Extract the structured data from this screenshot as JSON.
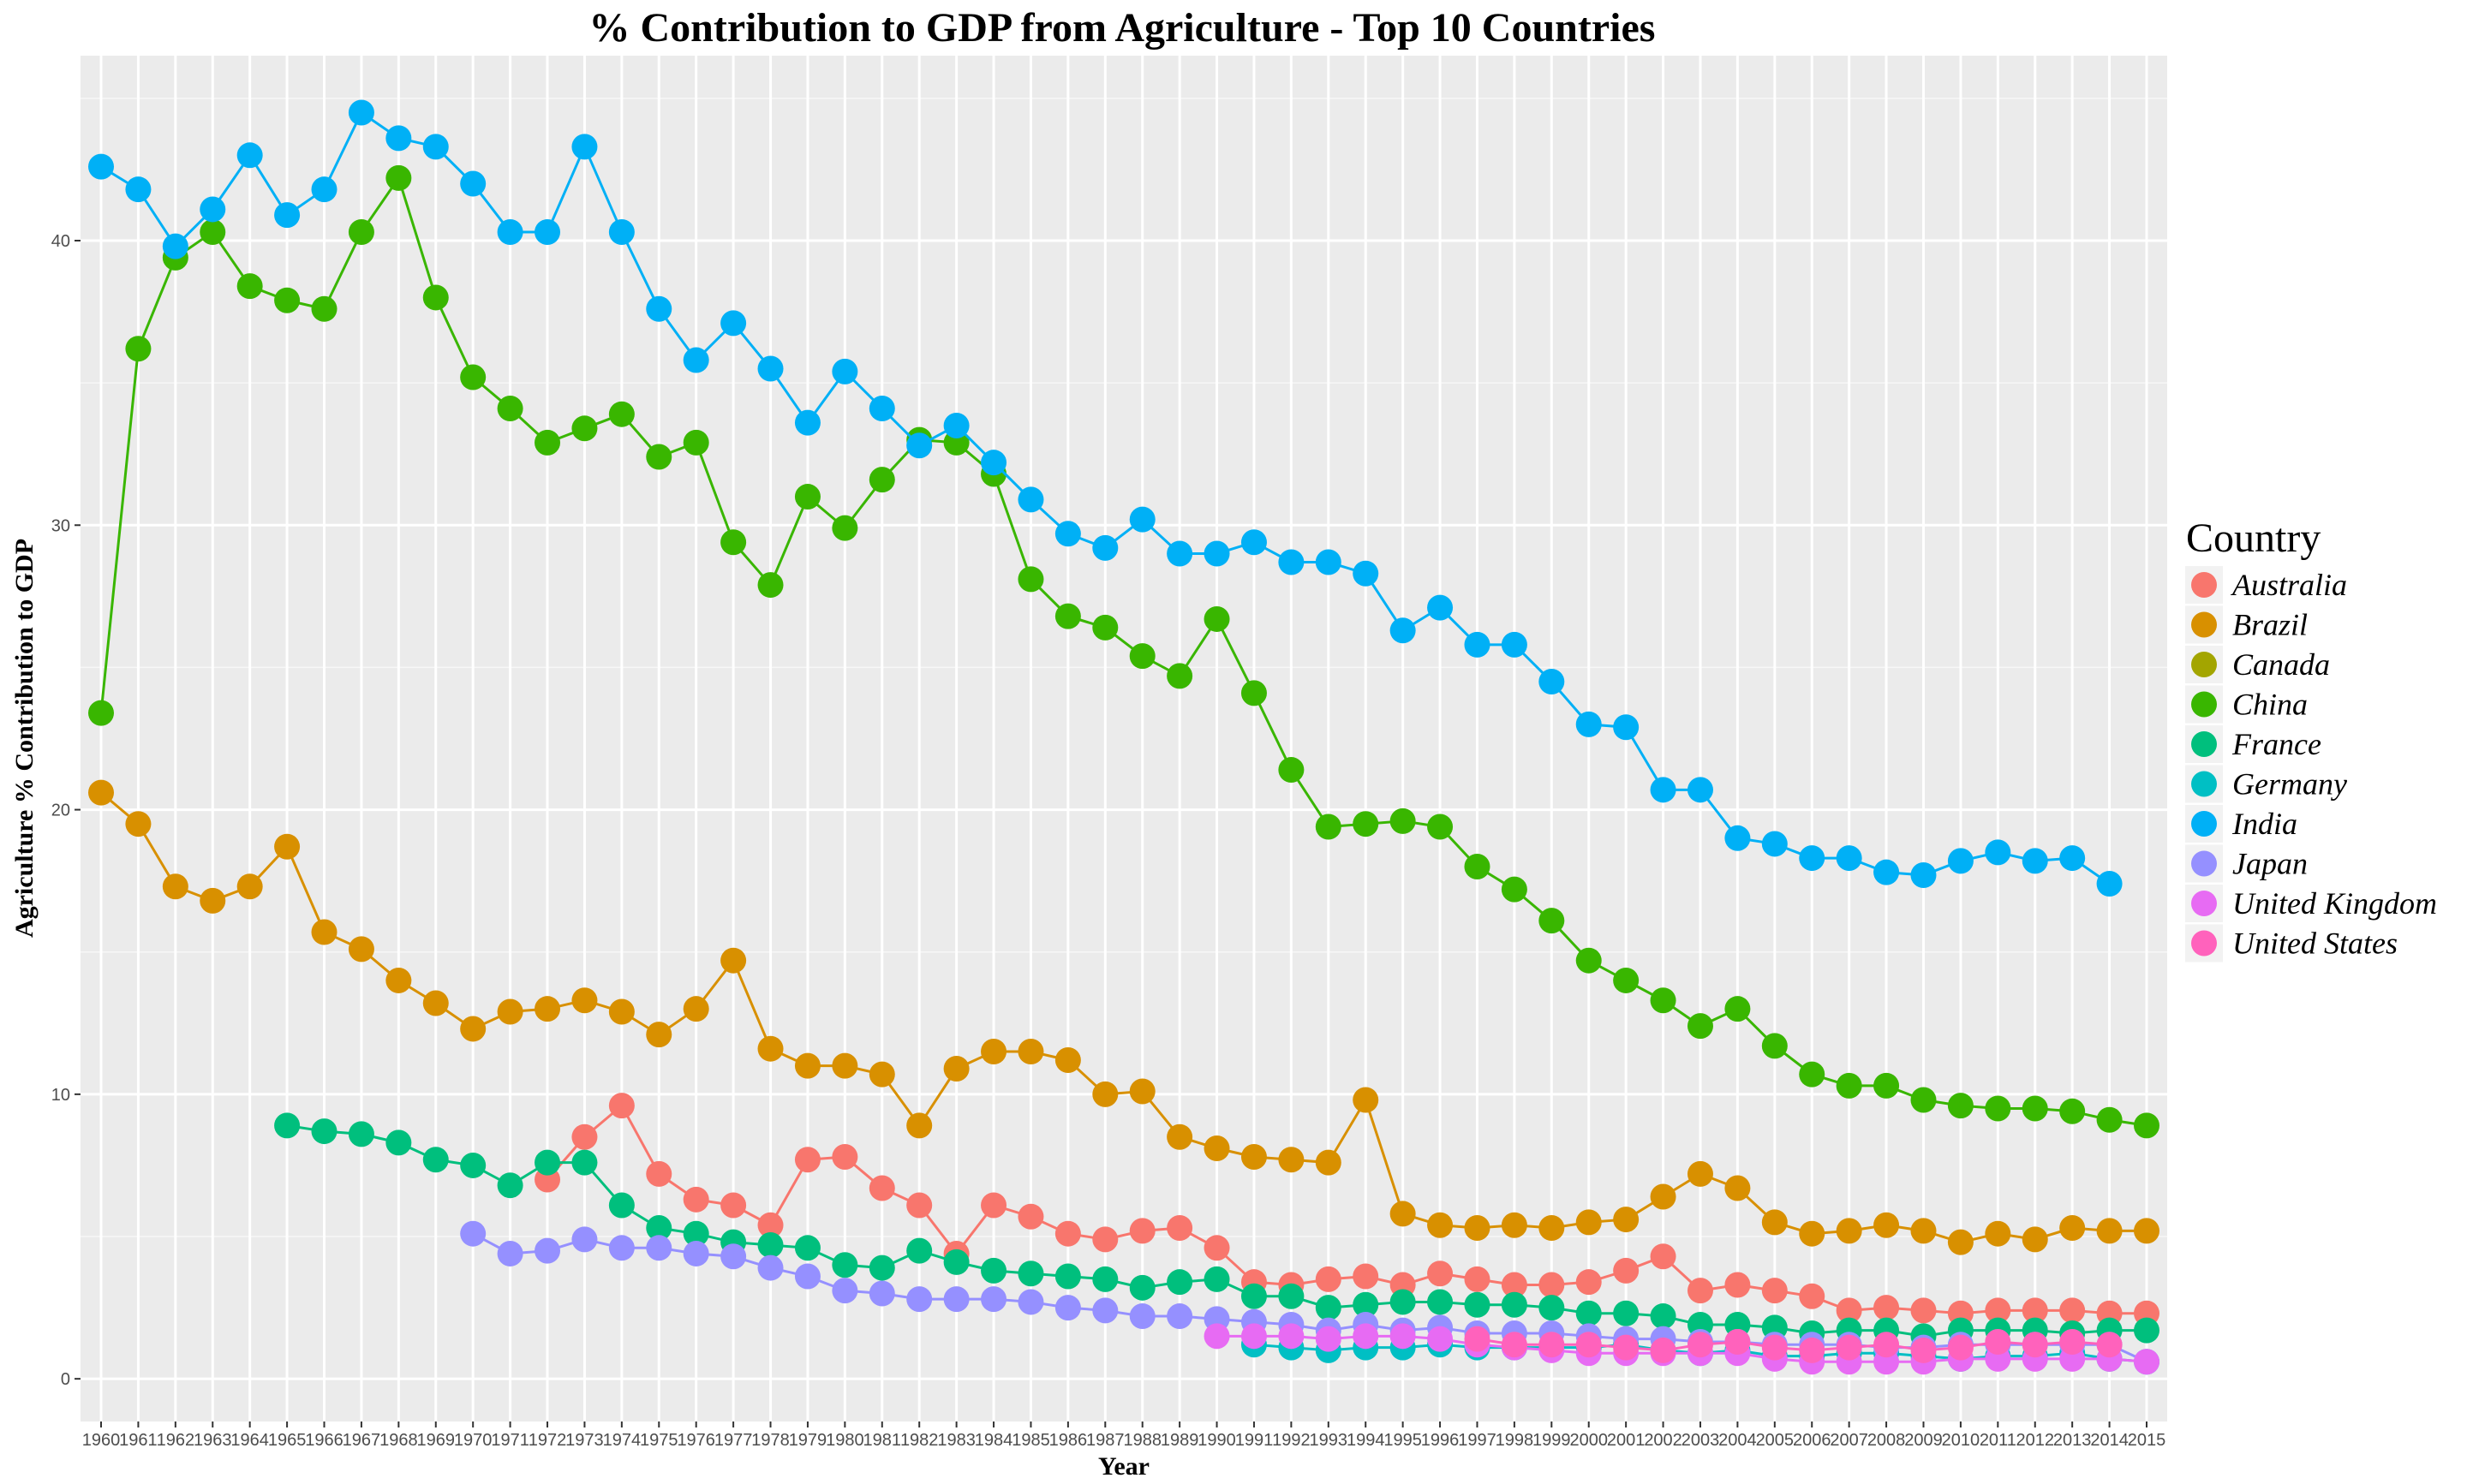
{
  "chart_data": {
    "type": "line",
    "title": "% Contribution to GDP from Agriculture - Top 10 Countries",
    "xlabel": "Year",
    "ylabel": "Agriculture % Contribution to GDP",
    "xlim": [
      1960,
      2015
    ],
    "ylim": [
      -1.5,
      46.5
    ],
    "y_ticks": [
      0,
      10,
      20,
      30,
      40
    ],
    "x_ticks": [
      1960,
      1961,
      1962,
      1963,
      1964,
      1965,
      1966,
      1967,
      1968,
      1969,
      1970,
      1971,
      1972,
      1973,
      1974,
      1975,
      1976,
      1977,
      1978,
      1979,
      1980,
      1981,
      1982,
      1983,
      1984,
      1985,
      1986,
      1987,
      1988,
      1989,
      1990,
      1991,
      1992,
      1993,
      1994,
      1995,
      1996,
      1997,
      1998,
      1999,
      2000,
      2001,
      2002,
      2003,
      2004,
      2005,
      2006,
      2007,
      2008,
      2009,
      2010,
      2011,
      2012,
      2013,
      2014,
      2015
    ],
    "grid": true,
    "legend": {
      "title": "Country",
      "placement": "right"
    },
    "series": [
      {
        "name": "Australia",
        "color": "#F8766D",
        "x": [
          1972,
          1973,
          1974,
          1975,
          1976,
          1977,
          1978,
          1979,
          1980,
          1981,
          1982,
          1983,
          1984,
          1985,
          1986,
          1987,
          1988,
          1989,
          1990,
          1991,
          1992,
          1993,
          1994,
          1995,
          1996,
          1997,
          1998,
          1999,
          2000,
          2001,
          2002,
          2003,
          2004,
          2005,
          2006,
          2007,
          2008,
          2009,
          2010,
          2011,
          2012,
          2013,
          2014,
          2015
        ],
        "y": [
          7.0,
          8.5,
          9.6,
          7.2,
          6.3,
          6.1,
          5.4,
          7.7,
          7.8,
          6.7,
          6.1,
          4.4,
          6.1,
          5.7,
          5.1,
          4.9,
          5.2,
          5.3,
          4.6,
          3.4,
          3.3,
          3.5,
          3.6,
          3.3,
          3.7,
          3.5,
          3.3,
          3.3,
          3.4,
          3.8,
          4.3,
          3.1,
          3.3,
          3.1,
          2.9,
          2.4,
          2.5,
          2.4,
          2.3,
          2.4,
          2.4,
          2.4,
          2.3,
          2.3
        ]
      },
      {
        "name": "Brazil",
        "color": "#D89000",
        "x": [
          1960,
          1961,
          1962,
          1963,
          1964,
          1965,
          1966,
          1967,
          1968,
          1969,
          1970,
          1971,
          1972,
          1973,
          1974,
          1975,
          1976,
          1977,
          1978,
          1979,
          1980,
          1981,
          1982,
          1983,
          1984,
          1985,
          1986,
          1987,
          1988,
          1989,
          1990,
          1991,
          1992,
          1993,
          1994,
          1995,
          1996,
          1997,
          1998,
          1999,
          2000,
          2001,
          2002,
          2003,
          2004,
          2005,
          2006,
          2007,
          2008,
          2009,
          2010,
          2011,
          2012,
          2013,
          2014,
          2015
        ],
        "y": [
          20.6,
          19.5,
          17.3,
          16.8,
          17.3,
          18.7,
          15.7,
          15.1,
          14.0,
          13.2,
          12.3,
          12.9,
          13.0,
          13.3,
          12.9,
          12.1,
          13.0,
          14.7,
          11.6,
          11.0,
          11.0,
          10.7,
          8.9,
          10.9,
          11.5,
          11.5,
          11.2,
          10.0,
          10.1,
          8.5,
          8.1,
          7.8,
          7.7,
          7.6,
          9.8,
          5.8,
          5.4,
          5.3,
          5.4,
          5.3,
          5.5,
          5.6,
          6.4,
          7.2,
          6.7,
          5.5,
          5.1,
          5.2,
          5.4,
          5.2,
          4.8,
          5.1,
          4.9,
          5.3,
          5.2,
          5.2
        ]
      },
      {
        "name": "Canada",
        "color": "#A3A500",
        "x": [],
        "y": []
      },
      {
        "name": "China",
        "color": "#39B600",
        "x": [
          1960,
          1961,
          1962,
          1963,
          1964,
          1965,
          1966,
          1967,
          1968,
          1969,
          1970,
          1971,
          1972,
          1973,
          1974,
          1975,
          1976,
          1977,
          1978,
          1979,
          1980,
          1981,
          1982,
          1983,
          1984,
          1985,
          1986,
          1987,
          1988,
          1989,
          1990,
          1991,
          1992,
          1993,
          1994,
          1995,
          1996,
          1997,
          1998,
          1999,
          2000,
          2001,
          2002,
          2003,
          2004,
          2005,
          2006,
          2007,
          2008,
          2009,
          2010,
          2011,
          2012,
          2013,
          2014,
          2015
        ],
        "y": [
          23.4,
          36.2,
          39.4,
          40.3,
          38.4,
          37.9,
          37.6,
          40.3,
          42.2,
          38.0,
          35.2,
          34.1,
          32.9,
          33.4,
          33.9,
          32.4,
          32.9,
          29.4,
          27.9,
          31.0,
          29.9,
          31.6,
          33.0,
          32.9,
          31.8,
          28.1,
          26.8,
          26.4,
          25.4,
          24.7,
          26.7,
          24.1,
          21.4,
          19.4,
          19.5,
          19.6,
          19.4,
          18.0,
          17.2,
          16.1,
          14.7,
          14.0,
          13.3,
          12.4,
          13.0,
          11.7,
          10.7,
          10.3,
          10.3,
          9.8,
          9.6,
          9.5,
          9.5,
          9.4,
          9.1,
          8.9
        ]
      },
      {
        "name": "France",
        "color": "#00BF7D",
        "x": [
          1965,
          1966,
          1967,
          1968,
          1969,
          1970,
          1971,
          1972,
          1973,
          1974,
          1975,
          1976,
          1977,
          1978,
          1979,
          1980,
          1981,
          1982,
          1983,
          1984,
          1985,
          1986,
          1987,
          1988,
          1989,
          1990,
          1991,
          1992,
          1993,
          1994,
          1995,
          1996,
          1997,
          1998,
          1999,
          2000,
          2001,
          2002,
          2003,
          2004,
          2005,
          2006,
          2007,
          2008,
          2009,
          2010,
          2011,
          2012,
          2013,
          2014,
          2015
        ],
        "y": [
          8.9,
          8.7,
          8.6,
          8.3,
          7.7,
          7.5,
          6.8,
          7.6,
          7.6,
          6.1,
          5.3,
          5.1,
          4.8,
          4.7,
          4.6,
          4.0,
          3.9,
          4.5,
          4.1,
          3.8,
          3.7,
          3.6,
          3.5,
          3.2,
          3.4,
          3.5,
          2.9,
          2.9,
          2.5,
          2.6,
          2.7,
          2.7,
          2.6,
          2.6,
          2.5,
          2.3,
          2.3,
          2.2,
          1.9,
          1.9,
          1.8,
          1.6,
          1.7,
          1.7,
          1.5,
          1.7,
          1.7,
          1.7,
          1.6,
          1.7,
          1.7
        ]
      },
      {
        "name": "Germany",
        "color": "#00BFC4",
        "x": [
          1991,
          1992,
          1993,
          1994,
          1995,
          1996,
          1997,
          1998,
          1999,
          2000,
          2001,
          2002,
          2003,
          2004,
          2005,
          2006,
          2007,
          2008,
          2009,
          2010,
          2011,
          2012,
          2013,
          2014,
          2015
        ],
        "y": [
          1.2,
          1.1,
          1.0,
          1.1,
          1.1,
          1.2,
          1.1,
          1.1,
          1.1,
          1.1,
          1.2,
          1.0,
          0.9,
          1.0,
          0.8,
          0.8,
          0.9,
          0.9,
          0.8,
          0.7,
          0.8,
          0.8,
          0.9,
          0.7,
          0.6
        ]
      },
      {
        "name": "India",
        "color": "#00B0F6",
        "x": [
          1960,
          1961,
          1962,
          1963,
          1964,
          1965,
          1966,
          1967,
          1968,
          1969,
          1970,
          1971,
          1972,
          1973,
          1974,
          1975,
          1976,
          1977,
          1978,
          1979,
          1980,
          1981,
          1982,
          1983,
          1984,
          1985,
          1986,
          1987,
          1988,
          1989,
          1990,
          1991,
          1992,
          1993,
          1994,
          1995,
          1996,
          1997,
          1998,
          1999,
          2000,
          2001,
          2002,
          2003,
          2004,
          2005,
          2006,
          2007,
          2008,
          2009,
          2010,
          2011,
          2012,
          2013,
          2014
        ],
        "y": [
          42.6,
          41.8,
          39.8,
          41.1,
          43.0,
          40.9,
          41.8,
          44.5,
          43.6,
          43.3,
          42.0,
          40.3,
          40.3,
          43.3,
          40.3,
          37.6,
          35.8,
          37.1,
          35.5,
          33.6,
          35.4,
          34.1,
          32.8,
          33.5,
          32.2,
          30.9,
          29.7,
          29.2,
          30.2,
          29.0,
          29.0,
          29.4,
          28.7,
          28.7,
          28.3,
          26.3,
          27.1,
          25.8,
          25.8,
          24.5,
          23.0,
          22.9,
          20.7,
          20.7,
          19.0,
          18.8,
          18.3,
          18.3,
          17.8,
          17.7,
          18.2,
          18.5,
          18.2,
          18.3,
          17.4
        ]
      },
      {
        "name": "Japan",
        "color": "#9590FF",
        "x": [
          1970,
          1971,
          1972,
          1973,
          1974,
          1975,
          1976,
          1977,
          1978,
          1979,
          1980,
          1981,
          1982,
          1983,
          1984,
          1985,
          1986,
          1987,
          1988,
          1989,
          1990,
          1991,
          1992,
          1993,
          1994,
          1995,
          1996,
          1997,
          1998,
          1999,
          2000,
          2001,
          2002,
          2003,
          2004,
          2005,
          2006,
          2007,
          2008,
          2009,
          2010,
          2011,
          2012,
          2013,
          2014,
          2015
        ],
        "y": [
          5.1,
          4.4,
          4.5,
          4.9,
          4.6,
          4.6,
          4.4,
          4.3,
          3.9,
          3.6,
          3.1,
          3.0,
          2.8,
          2.8,
          2.8,
          2.7,
          2.5,
          2.4,
          2.2,
          2.2,
          2.1,
          2.0,
          1.9,
          1.7,
          1.9,
          1.7,
          1.8,
          1.6,
          1.6,
          1.6,
          1.5,
          1.4,
          1.4,
          1.3,
          1.3,
          1.2,
          1.2,
          1.2,
          1.1,
          1.1,
          1.2,
          1.2,
          1.2,
          1.2,
          1.2,
          0.6
        ]
      },
      {
        "name": "United Kingdom",
        "color": "#E76BF3",
        "x": [
          1990,
          1991,
          1992,
          1993,
          1994,
          1995,
          1996,
          1997,
          1998,
          1999,
          2000,
          2001,
          2002,
          2003,
          2004,
          2005,
          2006,
          2007,
          2008,
          2009,
          2010,
          2011,
          2012,
          2013,
          2014,
          2015
        ],
        "y": [
          1.5,
          1.5,
          1.5,
          1.4,
          1.5,
          1.5,
          1.4,
          1.2,
          1.1,
          1.0,
          0.9,
          0.9,
          0.9,
          0.9,
          0.9,
          0.7,
          0.6,
          0.6,
          0.6,
          0.6,
          0.7,
          0.7,
          0.7,
          0.7,
          0.7,
          0.6
        ]
      },
      {
        "name": "United States",
        "color": "#FF62BC",
        "x": [
          1997,
          1998,
          1999,
          2000,
          2001,
          2002,
          2003,
          2004,
          2005,
          2006,
          2007,
          2008,
          2009,
          2010,
          2011,
          2012,
          2013,
          2014
        ],
        "y": [
          1.4,
          1.2,
          1.2,
          1.2,
          1.1,
          1.0,
          1.2,
          1.3,
          1.1,
          1.0,
          1.1,
          1.2,
          1.0,
          1.1,
          1.3,
          1.2,
          1.3,
          1.2
        ]
      }
    ]
  }
}
